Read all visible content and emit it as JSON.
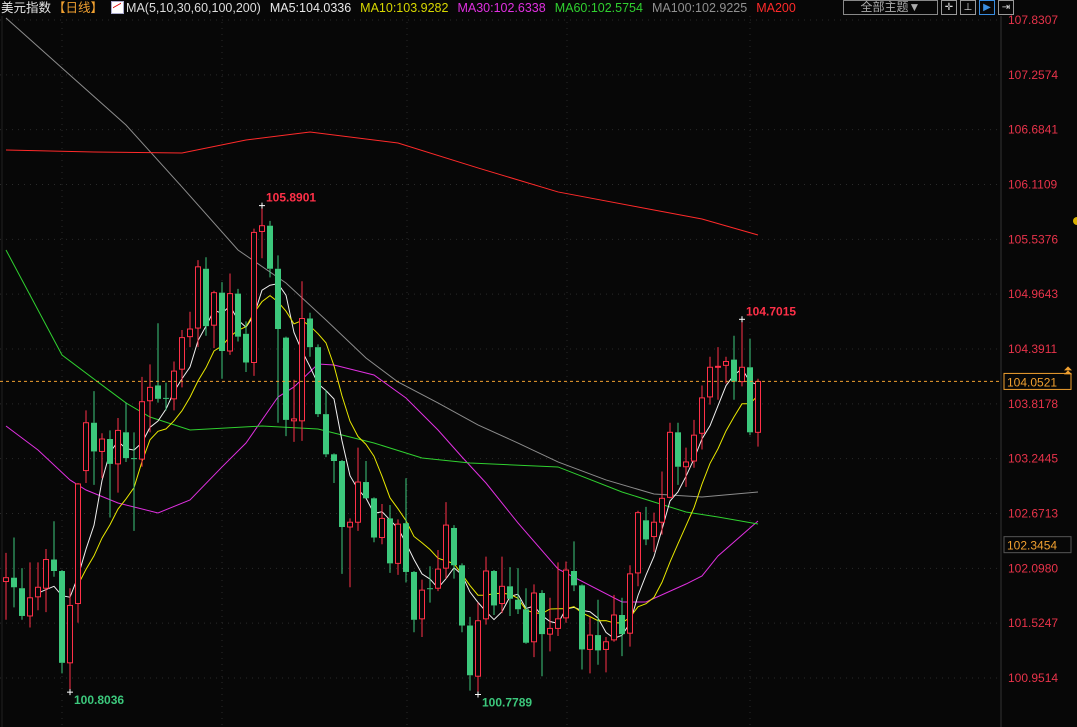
{
  "header": {
    "title": "美元指数",
    "period": "【日线】",
    "ma_params": "MA(5,10,30,60,100,200)",
    "ma_values": [
      {
        "label": "MA5:104.0336",
        "color": "#e8e8e8"
      },
      {
        "label": "MA10:103.9282",
        "color": "#d8d800"
      },
      {
        "label": "MA30:102.6338",
        "color": "#e030e0"
      },
      {
        "label": "MA60:102.5754",
        "color": "#30d030"
      },
      {
        "label": "MA100:102.9225",
        "color": "#909090"
      },
      {
        "label": "MA200",
        "color": "#ff2a2a"
      }
    ],
    "theme_button": "全部主题▼",
    "tools": [
      "crosshair-icon",
      "axis-icon",
      "play-icon",
      "exit-icon"
    ]
  },
  "chart_data": {
    "type": "candlestick",
    "title": "美元指数",
    "ylim": [
      100.9514,
      107.8307
    ],
    "y_ticks": [
      "107.8307",
      "107.2574",
      "106.6841",
      "106.1109",
      "105.5376",
      "104.9643",
      "104.3911",
      "103.8178",
      "103.2445",
      "102.6713",
      "102.0980",
      "101.5247",
      "100.9514"
    ],
    "grid": true,
    "colors": {
      "up": "#ff3048",
      "down": "#3cc87c",
      "background": "#070707",
      "tick": "#e8334a"
    },
    "last_price": "104.0521",
    "marker_price": "102.3454",
    "annotations": [
      {
        "label": "105.8901",
        "candle": 33,
        "kind": "high"
      },
      {
        "label": "104.7015",
        "candle": 93,
        "kind": "high"
      },
      {
        "label": "100.8036",
        "candle": 9,
        "kind": "low"
      },
      {
        "label": "100.7789",
        "candle": 60,
        "kind": "low"
      }
    ],
    "ohlc": [
      [
        101.96,
        102.26,
        101.56,
        102.0
      ],
      [
        102.0,
        102.42,
        101.69,
        101.9
      ],
      [
        101.89,
        102.1,
        101.56,
        101.6
      ],
      [
        101.6,
        102.16,
        101.48,
        101.79
      ],
      [
        101.8,
        102.16,
        101.66,
        101.9
      ],
      [
        101.89,
        102.3,
        101.64,
        102.19
      ],
      [
        102.19,
        102.59,
        102.01,
        102.07
      ],
      [
        102.07,
        102.08,
        101.0,
        101.11
      ],
      [
        101.11,
        101.89,
        100.8036,
        101.71
      ],
      [
        101.73,
        102.99,
        101.53,
        102.98
      ],
      [
        103.12,
        103.75,
        102.99,
        103.62
      ],
      [
        103.62,
        103.95,
        102.97,
        103.32
      ],
      [
        103.32,
        103.51,
        103.04,
        103.45
      ],
      [
        103.45,
        103.54,
        102.63,
        103.19
      ],
      [
        103.19,
        103.67,
        102.89,
        103.54
      ],
      [
        103.52,
        103.83,
        103.21,
        103.25
      ],
      [
        103.25,
        103.52,
        102.49,
        103.24
      ],
      [
        103.24,
        104.1,
        103.16,
        103.84
      ],
      [
        103.85,
        104.23,
        103.52,
        103.99
      ],
      [
        104.01,
        104.66,
        103.83,
        103.87
      ],
      [
        103.88,
        104.04,
        103.75,
        103.87
      ],
      [
        103.87,
        104.26,
        103.75,
        104.16
      ],
      [
        104.18,
        104.59,
        103.99,
        104.51
      ],
      [
        104.52,
        104.78,
        104.41,
        104.6
      ],
      [
        104.61,
        105.32,
        104.41,
        105.25
      ],
      [
        105.23,
        105.35,
        104.53,
        104.63
      ],
      [
        104.64,
        105.0,
        104.4,
        104.98
      ],
      [
        104.98,
        105.09,
        104.08,
        104.37
      ],
      [
        104.37,
        105.18,
        104.33,
        104.97
      ],
      [
        104.97,
        105.02,
        104.47,
        104.52
      ],
      [
        104.55,
        104.68,
        104.15,
        104.25
      ],
      [
        104.25,
        105.65,
        104.11,
        105.61
      ],
      [
        105.62,
        105.8901,
        105.34,
        105.68
      ],
      [
        105.68,
        105.73,
        105.14,
        105.23
      ],
      [
        105.23,
        105.37,
        103.62,
        104.6
      ],
      [
        104.51,
        104.52,
        103.48,
        103.65
      ],
      [
        103.64,
        104.07,
        103.42,
        103.66
      ],
      [
        103.64,
        105.1,
        103.43,
        104.71
      ],
      [
        104.71,
        104.77,
        104.31,
        104.41
      ],
      [
        104.41,
        104.44,
        103.68,
        103.71
      ],
      [
        103.71,
        103.96,
        103.26,
        103.29
      ],
      [
        103.29,
        103.3,
        102.99,
        103.22
      ],
      [
        103.22,
        103.23,
        102.04,
        102.53
      ],
      [
        102.53,
        102.62,
        101.9,
        102.58
      ],
      [
        102.58,
        103.36,
        102.49,
        103.0
      ],
      [
        103.0,
        103.22,
        102.83,
        102.83
      ],
      [
        102.83,
        102.84,
        102.37,
        102.42
      ],
      [
        102.42,
        102.77,
        102.35,
        102.62
      ],
      [
        102.62,
        102.76,
        102.05,
        102.15
      ],
      [
        102.15,
        102.61,
        102.03,
        102.56
      ],
      [
        102.57,
        103.04,
        101.95,
        102.06
      ],
      [
        102.06,
        102.07,
        101.43,
        101.56
      ],
      [
        101.57,
        101.98,
        101.38,
        101.87
      ],
      [
        101.89,
        102.12,
        101.74,
        101.88
      ],
      [
        101.89,
        102.29,
        101.86,
        102.09
      ],
      [
        102.1,
        102.79,
        101.99,
        102.55
      ],
      [
        102.52,
        102.55,
        101.99,
        102.13
      ],
      [
        102.13,
        102.15,
        101.43,
        101.5
      ],
      [
        101.5,
        101.59,
        100.82,
        100.98
      ],
      [
        100.97,
        101.74,
        100.7789,
        101.55
      ],
      [
        101.57,
        102.22,
        101.51,
        102.07
      ],
      [
        102.07,
        102.08,
        101.61,
        101.71
      ],
      [
        101.73,
        102.22,
        101.63,
        101.91
      ],
      [
        101.91,
        102.11,
        101.6,
        101.78
      ],
      [
        101.77,
        102.1,
        101.62,
        101.67
      ],
      [
        101.67,
        101.89,
        101.31,
        101.32
      ],
      [
        101.33,
        101.93,
        101.17,
        101.84
      ],
      [
        101.84,
        101.87,
        100.97,
        101.41
      ],
      [
        101.41,
        101.79,
        101.23,
        101.47
      ],
      [
        101.47,
        102.16,
        101.39,
        101.57
      ],
      [
        101.58,
        102.17,
        101.53,
        102.08
      ],
      [
        102.07,
        102.38,
        101.86,
        101.92
      ],
      [
        101.92,
        101.93,
        101.04,
        101.25
      ],
      [
        101.25,
        101.59,
        101.0,
        101.4
      ],
      [
        101.4,
        101.77,
        101.09,
        101.24
      ],
      [
        101.25,
        101.38,
        101.01,
        101.33
      ],
      [
        101.35,
        101.82,
        101.33,
        101.61
      ],
      [
        101.61,
        101.79,
        101.18,
        101.41
      ],
      [
        101.42,
        102.13,
        101.28,
        102.04
      ],
      [
        102.05,
        102.7,
        101.91,
        102.68
      ],
      [
        102.6,
        102.74,
        102.34,
        102.4
      ],
      [
        102.43,
        102.68,
        102.27,
        102.58
      ],
      [
        102.58,
        103.11,
        102.45,
        102.83
      ],
      [
        102.84,
        103.62,
        102.83,
        103.52
      ],
      [
        103.52,
        103.62,
        102.97,
        103.16
      ],
      [
        103.16,
        103.36,
        102.95,
        103.21
      ],
      [
        103.22,
        103.65,
        103.15,
        103.49
      ],
      [
        103.51,
        104.01,
        103.34,
        103.88
      ],
      [
        103.89,
        104.31,
        103.81,
        104.2
      ],
      [
        104.2,
        104.41,
        103.86,
        104.21
      ],
      [
        104.22,
        104.31,
        104.03,
        104.26
      ],
      [
        104.28,
        104.53,
        103.86,
        104.05
      ],
      [
        104.05,
        104.7015,
        104.0,
        104.2
      ],
      [
        104.2,
        104.5,
        103.49,
        103.52
      ],
      [
        103.52,
        104.08,
        103.37,
        104.0521
      ]
    ],
    "moving_averages": [
      {
        "name": "MA30",
        "color": "#e030e0",
        "points": [
          [
            1,
            103.586
          ],
          [
            5,
            103.335
          ],
          [
            9,
            103.022
          ],
          [
            11,
            102.917
          ],
          [
            15,
            102.781
          ],
          [
            20,
            102.677
          ],
          [
            24,
            102.813
          ],
          [
            28,
            103.158
          ],
          [
            31,
            103.408
          ],
          [
            35,
            103.889
          ],
          [
            37,
            103.994
          ],
          [
            40,
            104.234
          ],
          [
            42,
            104.224
          ],
          [
            47,
            104.119
          ],
          [
            51,
            103.879
          ],
          [
            55,
            103.544
          ],
          [
            58,
            103.262
          ],
          [
            61,
            102.99
          ],
          [
            65,
            102.572
          ],
          [
            70,
            102.091
          ],
          [
            78,
            101.746
          ],
          [
            81,
            101.746
          ],
          [
            86,
            101.934
          ],
          [
            88,
            102.018
          ],
          [
            90,
            102.227
          ],
          [
            95,
            102.593
          ]
        ]
      },
      {
        "name": "MA60",
        "color": "#30d030",
        "points": [
          [
            1,
            105.426
          ],
          [
            8,
            104.328
          ],
          [
            13,
            104.014
          ],
          [
            16,
            103.827
          ],
          [
            19,
            103.68
          ],
          [
            24,
            103.544
          ],
          [
            33,
            103.586
          ],
          [
            40,
            103.555
          ],
          [
            47,
            103.408
          ],
          [
            53,
            103.252
          ],
          [
            59,
            103.199
          ],
          [
            70,
            103.158
          ],
          [
            78,
            102.896
          ],
          [
            86,
            102.687
          ],
          [
            90,
            102.635
          ],
          [
            95,
            102.561
          ]
        ]
      },
      {
        "name": "MA100",
        "color": "#8c8c8c",
        "points": [
          [
            1,
            107.852
          ],
          [
            8,
            107.329
          ],
          [
            16,
            106.733
          ],
          [
            23,
            106.085
          ],
          [
            30,
            105.426
          ],
          [
            36,
            105.081
          ],
          [
            41,
            104.694
          ],
          [
            46,
            104.297
          ],
          [
            50,
            104.046
          ],
          [
            55,
            103.827
          ],
          [
            60,
            103.597
          ],
          [
            65,
            103.408
          ],
          [
            70,
            103.21
          ],
          [
            76,
            103.022
          ],
          [
            82,
            102.875
          ],
          [
            88,
            102.844
          ],
          [
            95,
            102.896
          ]
        ]
      },
      {
        "name": "MA200",
        "color": "#ff2a2a",
        "points": [
          [
            1,
            106.472
          ],
          [
            12,
            106.451
          ],
          [
            23,
            106.44
          ],
          [
            31,
            106.576
          ],
          [
            39,
            106.66
          ],
          [
            50,
            106.545
          ],
          [
            60,
            106.284
          ],
          [
            70,
            106.033
          ],
          [
            80,
            105.876
          ],
          [
            88,
            105.75
          ],
          [
            95,
            105.583
          ]
        ]
      }
    ],
    "computed_ma": [
      {
        "name": "MA5",
        "period": 5,
        "color": "#f0f0f0"
      },
      {
        "name": "MA10",
        "period": 10,
        "color": "#e8e800"
      }
    ]
  }
}
